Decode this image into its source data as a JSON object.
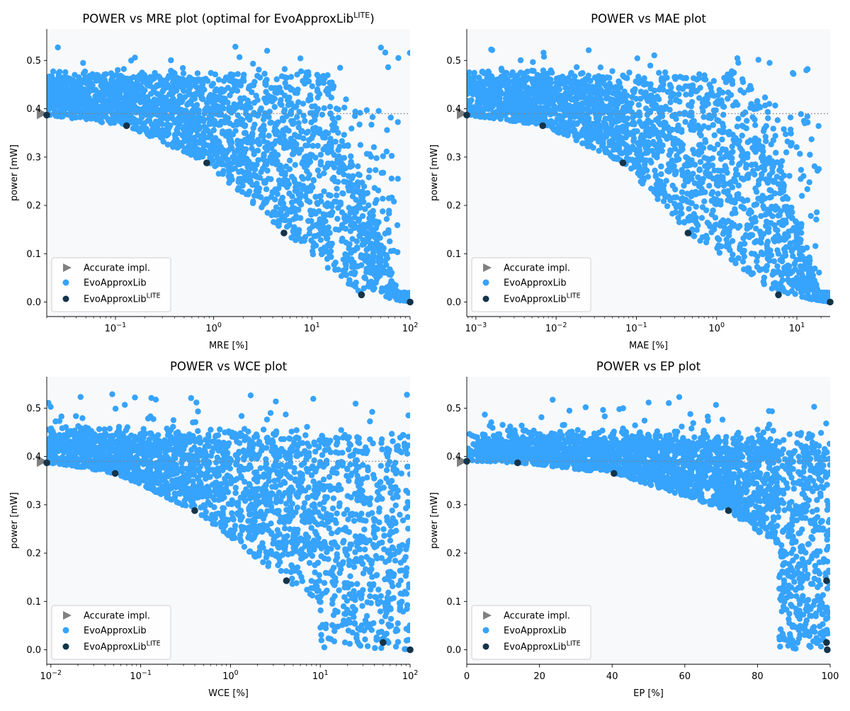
{
  "figure": {
    "colors": {
      "evo": "#36a3fc",
      "lite": "#14344a",
      "accurate": "#808080",
      "axes_bg": "#f8f9fb",
      "ref_line": "#808080"
    },
    "legend": {
      "accurate": "Accurate impl.",
      "evo": "EvoApproxLib",
      "lite_base": "EvoApproxLib",
      "lite_sup": "LITE"
    },
    "ylabel": "power [mW]"
  },
  "chart_data": [
    {
      "type": "scatter",
      "title": "POWER vs MRE plot (optimal for EvoApproxLib",
      "title_sup": "LITE",
      "title_suffix": ")",
      "xlabel": "MRE [%]",
      "ylabel": "power [mW]",
      "xscale": "log",
      "xlim": [
        0.02,
        100
      ],
      "ylim": [
        -0.03,
        0.565
      ],
      "xticks": [
        0.1,
        1,
        10,
        100
      ],
      "xtick_labels": [
        {
          "base": "10",
          "exp": "−1"
        },
        {
          "base": "10",
          "exp": "0"
        },
        {
          "base": "10",
          "exp": "1"
        },
        {
          "base": "10",
          "exp": "2"
        }
      ],
      "yticks": [
        0.0,
        0.1,
        0.2,
        0.3,
        0.4,
        0.5
      ],
      "ytick_labels": [
        "0.0",
        "0.1",
        "0.2",
        "0.3",
        "0.4",
        "0.5"
      ],
      "reference_power": 0.39,
      "legend_position": "lower left",
      "accurate": {
        "name": "Accurate impl.",
        "x": 0.02,
        "y": 0.39
      },
      "lite": {
        "name": "EvoApproxLibLITE",
        "x": [
          0.02,
          0.13,
          0.85,
          5.2,
          32,
          100
        ],
        "y": [
          0.387,
          0.365,
          0.288,
          0.143,
          0.015,
          0.0
        ]
      },
      "evo": {
        "name": "EvoApproxLib",
        "envelope": "frontier"
      }
    },
    {
      "type": "scatter",
      "title": "POWER vs MAE plot",
      "title_sup": "",
      "title_suffix": "",
      "xlabel": "MAE [%]",
      "ylabel": "power [mW]",
      "xscale": "log",
      "xlim": [
        0.00077,
        26
      ],
      "ylim": [
        -0.03,
        0.565
      ],
      "xticks": [
        0.001,
        0.01,
        0.1,
        1,
        10
      ],
      "xtick_labels": [
        {
          "base": "10",
          "exp": "−3"
        },
        {
          "base": "10",
          "exp": "−2"
        },
        {
          "base": "10",
          "exp": "−1"
        },
        {
          "base": "10",
          "exp": "0"
        },
        {
          "base": "10",
          "exp": "1"
        }
      ],
      "yticks": [
        0.0,
        0.1,
        0.2,
        0.3,
        0.4,
        0.5
      ],
      "ytick_labels": [
        "0.0",
        "0.1",
        "0.2",
        "0.3",
        "0.4",
        "0.5"
      ],
      "reference_power": 0.39,
      "legend_position": "lower left",
      "accurate": {
        "name": "Accurate impl.",
        "x": 0.00077,
        "y": 0.39
      },
      "lite": {
        "name": "EvoApproxLibLITE",
        "x": [
          0.00077,
          0.0068,
          0.068,
          0.44,
          5.9,
          26
        ],
        "y": [
          0.387,
          0.365,
          0.288,
          0.143,
          0.015,
          0.0
        ]
      },
      "evo": {
        "name": "EvoApproxLib",
        "envelope": "frontier"
      }
    },
    {
      "type": "scatter",
      "title": "POWER vs WCE plot",
      "title_sup": "",
      "title_suffix": "",
      "xlabel": "WCE [%]",
      "ylabel": "power [mW]",
      "xscale": "log",
      "xlim": [
        0.009,
        100
      ],
      "ylim": [
        -0.03,
        0.565
      ],
      "xticks": [
        0.01,
        0.1,
        1,
        10,
        100
      ],
      "xtick_labels": [
        {
          "base": "10",
          "exp": "−2"
        },
        {
          "base": "10",
          "exp": "−1"
        },
        {
          "base": "10",
          "exp": "0"
        },
        {
          "base": "10",
          "exp": "1"
        },
        {
          "base": "10",
          "exp": "2"
        }
      ],
      "yticks": [
        0.0,
        0.1,
        0.2,
        0.3,
        0.4,
        0.5
      ],
      "ytick_labels": [
        "0.0",
        "0.1",
        "0.2",
        "0.3",
        "0.4",
        "0.5"
      ],
      "reference_power": 0.39,
      "legend_position": "lower left",
      "accurate": {
        "name": "Accurate impl.",
        "x": 0.009,
        "y": 0.39
      },
      "lite": {
        "name": "EvoApproxLibLITE",
        "x": [
          0.009,
          0.052,
          0.4,
          4.2,
          50,
          100
        ],
        "y": [
          0.387,
          0.365,
          0.288,
          0.143,
          0.015,
          0.0
        ]
      },
      "evo": {
        "name": "EvoApproxLib",
        "envelope": "wce"
      }
    },
    {
      "type": "scatter",
      "title": "POWER vs EP plot",
      "title_sup": "",
      "title_suffix": "",
      "xlabel": "EP [%]",
      "ylabel": "power [mW]",
      "xscale": "linear",
      "xlim": [
        0,
        100
      ],
      "ylim": [
        -0.03,
        0.565
      ],
      "xticks": [
        0,
        20,
        40,
        60,
        80,
        100
      ],
      "xtick_labels": [
        {
          "base": "0",
          "exp": ""
        },
        {
          "base": "20",
          "exp": ""
        },
        {
          "base": "40",
          "exp": ""
        },
        {
          "base": "60",
          "exp": ""
        },
        {
          "base": "80",
          "exp": ""
        },
        {
          "base": "100",
          "exp": ""
        }
      ],
      "yticks": [
        0.0,
        0.1,
        0.2,
        0.3,
        0.4,
        0.5
      ],
      "ytick_labels": [
        "0.0",
        "0.1",
        "0.2",
        "0.3",
        "0.4",
        "0.5"
      ],
      "reference_power": 0.39,
      "legend_position": "lower left",
      "accurate": {
        "name": "Accurate impl.",
        "x": 0,
        "y": 0.39
      },
      "lite": {
        "name": "EvoApproxLibLITE",
        "x": [
          0,
          14,
          40.5,
          72,
          99,
          99,
          99.2
        ],
        "y": [
          0.39,
          0.387,
          0.365,
          0.288,
          0.143,
          0.015,
          0.0
        ]
      },
      "evo": {
        "name": "EvoApproxLib",
        "envelope": "ep"
      }
    }
  ]
}
